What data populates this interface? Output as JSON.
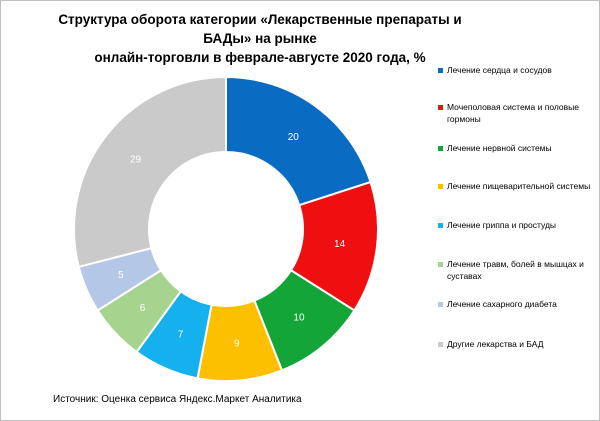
{
  "chart_data": {
    "type": "pie",
    "title_lines": [
      "Структура оборота категории «Лекарственные препараты и БАДы» на рынке",
      "онлайн-торговли в феврале-августе 2020 года, %"
    ],
    "categories": [
      "Лечение сердца и сосудов",
      "Мочеполовая  система и половые гормоны",
      "Лечение нервной системы",
      "Лечение пищеварительной системы",
      "Лечение гриппа и простуды",
      "Лечение травм, болей в мышцах и суставах",
      "Лечение сахарного диабета",
      "Другие лекарства и БАД"
    ],
    "values": [
      20,
      14,
      10,
      9,
      7,
      6,
      5,
      29
    ],
    "data_labels": [
      "20",
      "14",
      "10",
      "9",
      "7",
      "6",
      "5",
      "29"
    ],
    "colors": [
      "#0a6bc2",
      "#ef0f10",
      "#13a537",
      "#fcc000",
      "#15b0ee",
      "#a6d38d",
      "#b4c7e7",
      "#cacaca"
    ],
    "inner_hole": true,
    "legend_position": "right"
  },
  "source": "Источник: Оценка сервиса Яндекс.Маркет Аналитика"
}
